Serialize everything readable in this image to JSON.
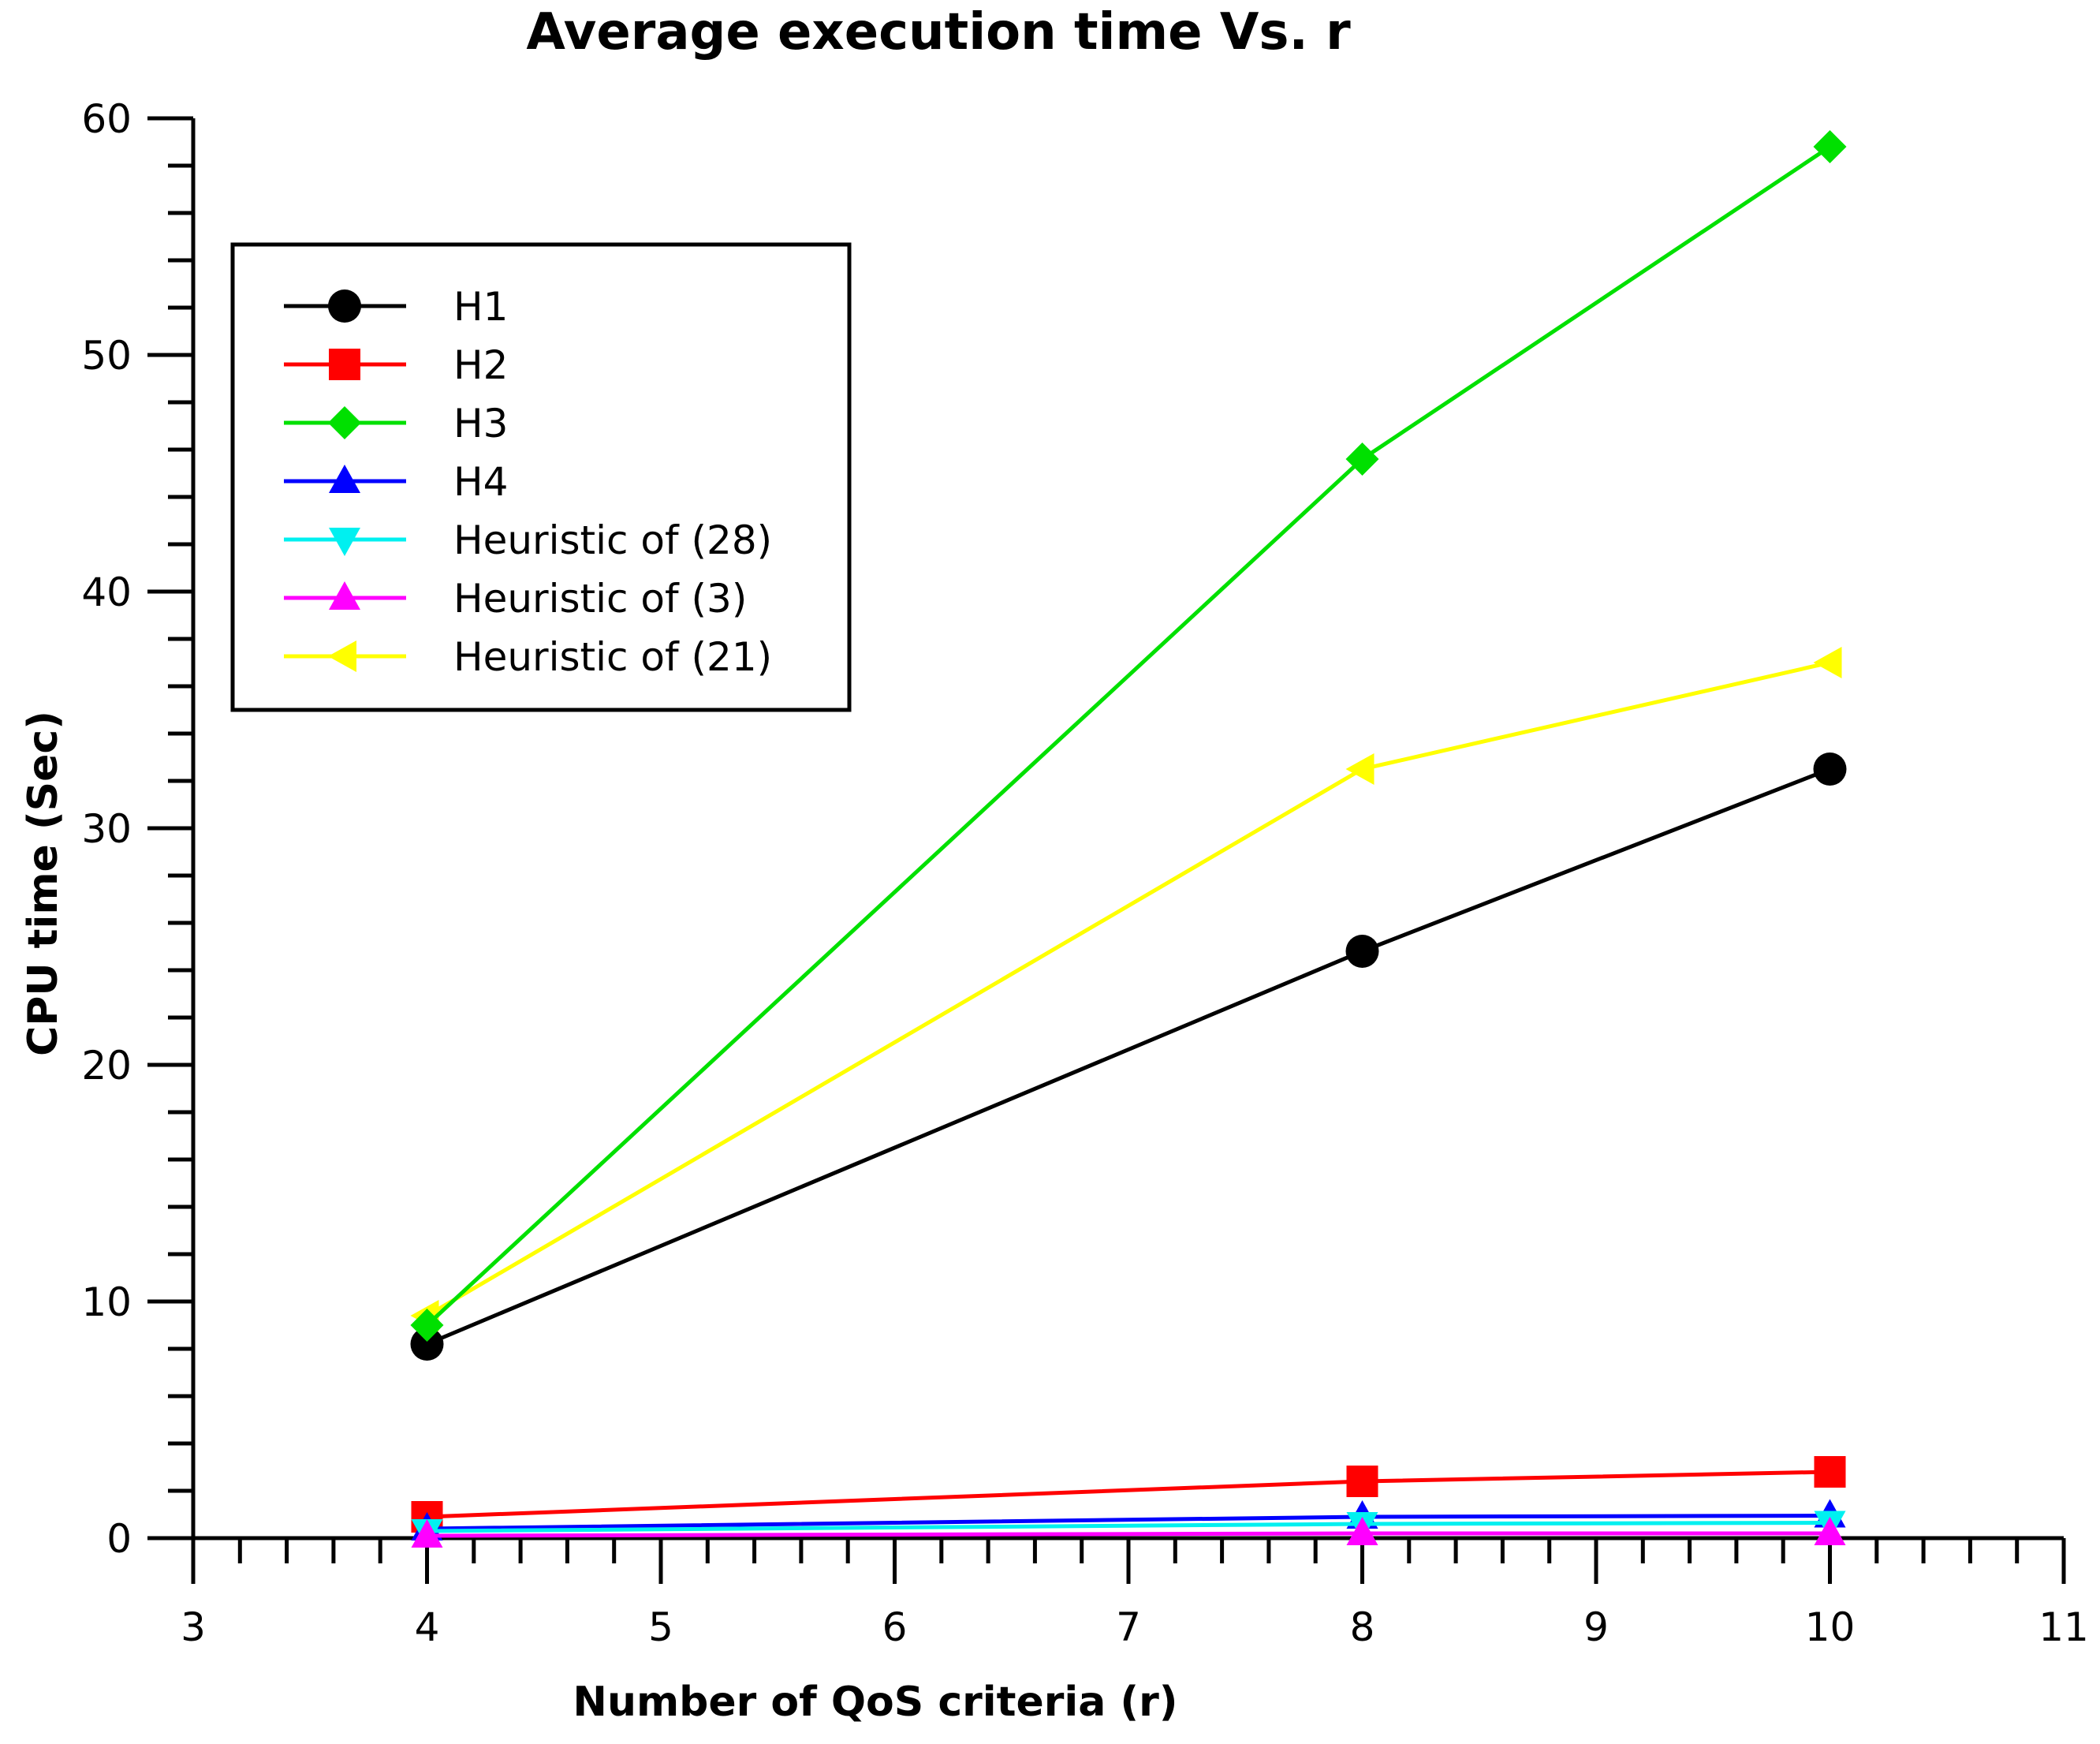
{
  "chart_data": {
    "type": "line",
    "title": "Average execution time Vs. r",
    "xlabel": "Number of QoS criteria (r)",
    "ylabel": "CPU time (Sec)",
    "xlim": [
      3,
      11
    ],
    "ylim": [
      0,
      60
    ],
    "xticks": [
      3,
      4,
      5,
      6,
      7,
      8,
      9,
      10,
      11
    ],
    "yticks": [
      0,
      10,
      20,
      30,
      40,
      50,
      60
    ],
    "x": [
      4,
      8,
      10
    ],
    "legend_position": "top-left",
    "grid": false,
    "series": [
      {
        "name": "H1",
        "values": [
          8.2,
          24.8,
          32.5
        ],
        "color": "#000000",
        "marker": "circle"
      },
      {
        "name": "H2",
        "values": [
          0.9,
          2.4,
          2.8
        ],
        "color": "#ff0000",
        "marker": "square"
      },
      {
        "name": "H3",
        "values": [
          9.0,
          45.6,
          58.8
        ],
        "color": "#00e000",
        "marker": "diamond"
      },
      {
        "name": "H4",
        "values": [
          0.4,
          0.9,
          0.95
        ],
        "color": "#0000ff",
        "marker": "triangle-up"
      },
      {
        "name": "Heuristic of (28)",
        "values": [
          0.3,
          0.6,
          0.65
        ],
        "color": "#00f0f0",
        "marker": "triangle-down"
      },
      {
        "name": "Heuristic of (3)",
        "values": [
          0.1,
          0.2,
          0.2
        ],
        "color": "#ff00ff",
        "marker": "triangle-up"
      },
      {
        "name": "Heuristic of (21)",
        "values": [
          9.4,
          32.5,
          37.0
        ],
        "color": "#ffff00",
        "marker": "triangle-left"
      }
    ]
  }
}
